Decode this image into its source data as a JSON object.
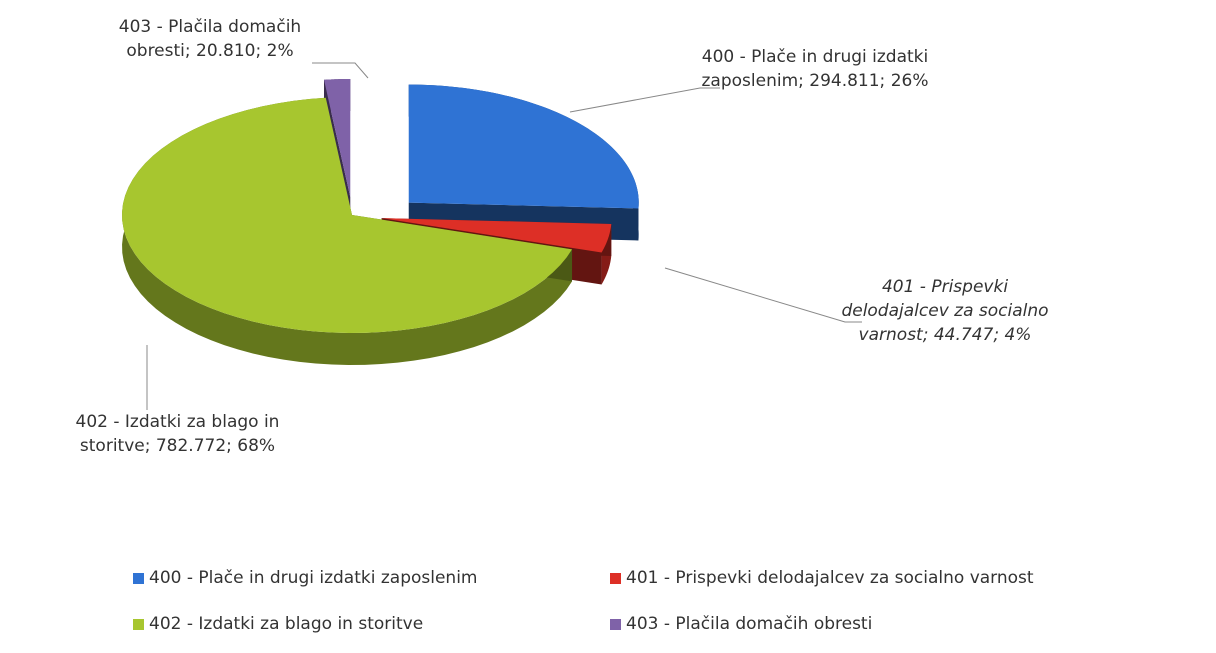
{
  "chart_data": {
    "type": "pie",
    "categories": [
      "400 - Plače in drugi izdatki zaposlenim",
      "401 - Prispevki delodajalcev za socialno varnost",
      "402 - Izdatki za blago in storitve",
      "403 - Plačila domačih obresti"
    ],
    "values": [
      294.811,
      44.747,
      782.772,
      20.81
    ],
    "value_labels": [
      "400 - Plače in drugi izdatki zaposlenim; 294.811; 26%",
      "401 - Prispevki delodajalcev za socialno varnost; 44.747; 4%",
      "402 - Izdatki za blago in storitve; 782.772; 68%",
      "403 - Plačila domačih obresti; 20.810; 2%"
    ],
    "colors": [
      "#2f73d4",
      "#dd2f26",
      "#a7c62f",
      "#7f62a8"
    ],
    "legend": "bottom"
  }
}
